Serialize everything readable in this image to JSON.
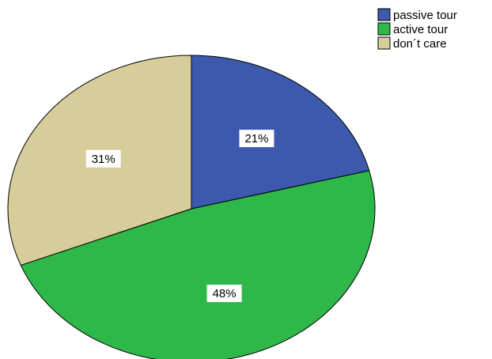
{
  "chart_data": {
    "type": "pie",
    "slices": [
      {
        "label": "passive tour",
        "value": 21,
        "display": "21%",
        "color": "#3c59ae"
      },
      {
        "label": "active tour",
        "value": 48,
        "display": "48%",
        "color": "#2fb84a"
      },
      {
        "label": "don´t care",
        "value": 31,
        "display": "31%",
        "color": "#d6cd9a"
      }
    ],
    "start": "top",
    "direction": "clockwise",
    "legend_position": "top-right"
  }
}
